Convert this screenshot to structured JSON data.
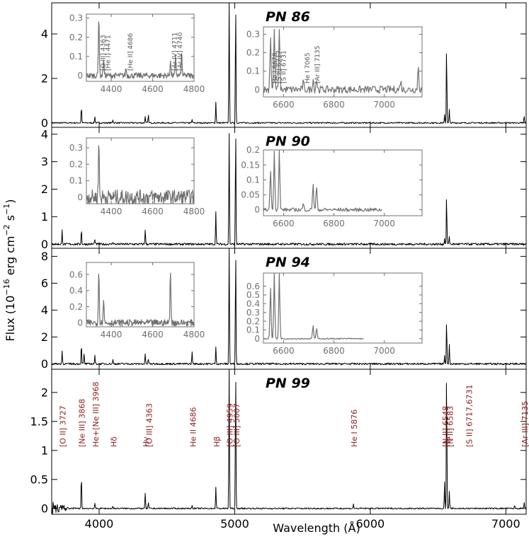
{
  "figure": {
    "xlabel": "Wavelength (Å)",
    "ylabel_main": "Flux (10",
    "ylabel_exp1": "−16",
    "ylabel_mid": " erg cm",
    "ylabel_exp2": "−2",
    "ylabel_mid2": " s",
    "ylabel_exp3": "−1",
    "ylabel_end": ")"
  },
  "chart_data": [
    {
      "type": "line",
      "title": "PN 86",
      "xlim": [
        3650,
        7150
      ],
      "ylim": [
        -0.2,
        5.4
      ],
      "yticks": [
        0,
        2,
        4
      ],
      "xticks": [
        4000,
        5000,
        6000,
        7000
      ],
      "baseline_noise": 0.03,
      "lines": [
        {
          "x": 3869,
          "y": 0.75
        },
        {
          "x": 3968,
          "y": 0.3
        },
        {
          "x": 4101,
          "y": 0.15
        },
        {
          "x": 4340,
          "y": 0.3
        },
        {
          "x": 4363,
          "y": 0.35
        },
        {
          "x": 4686,
          "y": 0.15
        },
        {
          "x": 4861,
          "y": 0.95
        },
        {
          "x": 4959,
          "y": 5.4
        },
        {
          "x": 5007,
          "y": 5.4
        },
        {
          "x": 6548,
          "y": 0.35
        },
        {
          "x": 6563,
          "y": 3.45
        },
        {
          "x": 6583,
          "y": 0.6
        },
        {
          "x": 7135,
          "y": 0.3
        }
      ],
      "insets": [
        {
          "xlim": [
            4280,
            4800
          ],
          "ylim": [
            -0.03,
            0.32
          ],
          "xticks": [
            4400,
            4600,
            4800
          ],
          "yticks": [
            0,
            0.1,
            0.2,
            0.3
          ],
          "ytick_labels": [
            "0",
            "0.1",
            "0.2",
            "0.3"
          ],
          "noise": 0.015,
          "lines": [
            {
              "x": 4340,
              "y": 0.32
            },
            {
              "x": 4363,
              "y": 0.09
            },
            {
              "x": 4471,
              "y": 0.04
            },
            {
              "x": 4686,
              "y": 0.08
            },
            {
              "x": 4711,
              "y": 0.1
            },
            {
              "x": 4740,
              "y": 0.12
            }
          ],
          "labels": [
            "[O III] 4363",
            "[He I] 4471",
            "[He II] 4686",
            "[Ar IV] 4711",
            "[Ar IV] 4740"
          ]
        },
        {
          "xlim": [
            6520,
            7150
          ],
          "ylim": [
            -0.04,
            0.34
          ],
          "xticks": [
            6600,
            6800,
            7000
          ],
          "yticks": [
            0,
            0.1,
            0.2,
            0.3
          ],
          "ytick_labels": [
            "0",
            "0.1",
            "0.2",
            "0.3"
          ],
          "noise": 0.02,
          "lines": [
            {
              "x": 6548,
              "y": 0.3
            },
            {
              "x": 6563,
              "y": 0.34
            },
            {
              "x": 6583,
              "y": 0.34
            },
            {
              "x": 6678,
              "y": 0.04
            },
            {
              "x": 6717,
              "y": 0.06
            },
            {
              "x": 6731,
              "y": 0.06
            },
            {
              "x": 7065,
              "y": 0.05
            },
            {
              "x": 7135,
              "y": 0.13
            }
          ],
          "labels": [
            "He I 6678",
            "[S II] 6717",
            "[S II] 6731",
            "He I 7065",
            "[Ar III] 7135"
          ]
        }
      ]
    },
    {
      "type": "line",
      "title": "PN 90",
      "xlim": [
        3650,
        7150
      ],
      "ylim": [
        -0.15,
        4.25
      ],
      "yticks": [
        0,
        1,
        2,
        3,
        4
      ],
      "xticks": [
        4000,
        5000,
        6000,
        7000
      ],
      "baseline_noise": 0.04,
      "lines": [
        {
          "x": 3727,
          "y": 0.5
        },
        {
          "x": 3869,
          "y": 0.55
        },
        {
          "x": 3968,
          "y": 0.2
        },
        {
          "x": 4101,
          "y": 0.1
        },
        {
          "x": 4340,
          "y": 0.55
        },
        {
          "x": 4861,
          "y": 1.2
        },
        {
          "x": 4959,
          "y": 4.0
        },
        {
          "x": 5007,
          "y": 4.25
        },
        {
          "x": 6548,
          "y": 0.2
        },
        {
          "x": 6563,
          "y": 1.75
        },
        {
          "x": 6583,
          "y": 0.3
        }
      ],
      "insets": [
        {
          "xlim": [
            4280,
            4800
          ],
          "ylim": [
            -0.04,
            0.36
          ],
          "xticks": [
            4400,
            4600,
            4800
          ],
          "yticks": [
            0,
            0.1,
            0.2,
            0.3
          ],
          "ytick_labels": [
            "0",
            "0.1",
            "0.2",
            "0.3"
          ],
          "noise": 0.045,
          "lines": [
            {
              "x": 4340,
              "y": 0.34
            }
          ],
          "labels": []
        },
        {
          "xlim": [
            6520,
            7150
          ],
          "ylim": [
            -0.02,
            0.2
          ],
          "xticks": [
            6600,
            6800,
            7000
          ],
          "yticks": [
            0,
            0.05,
            0.1,
            0.15,
            0.2
          ],
          "ytick_labels": [
            "0",
            "0.05",
            "0.1",
            "0.15",
            "0.2"
          ],
          "noise": 0.006,
          "data_end": 6990,
          "lines": [
            {
              "x": 6548,
              "y": 0.14
            },
            {
              "x": 6563,
              "y": 0.2
            },
            {
              "x": 6583,
              "y": 0.2
            },
            {
              "x": 6678,
              "y": 0.02
            },
            {
              "x": 6717,
              "y": 0.09
            },
            {
              "x": 6731,
              "y": 0.08
            }
          ],
          "labels": []
        }
      ]
    },
    {
      "type": "line",
      "title": "PN 94",
      "xlim": [
        3650,
        7150
      ],
      "ylim": [
        -0.4,
        8.6
      ],
      "yticks": [
        0,
        2,
        4,
        6,
        8
      ],
      "xticks": [
        4000,
        5000,
        6000,
        7000
      ],
      "baseline_noise": 0.07,
      "lines": [
        {
          "x": 3727,
          "y": 1.0
        },
        {
          "x": 3869,
          "y": 1.5
        },
        {
          "x": 3889,
          "y": 0.8
        },
        {
          "x": 3968,
          "y": 0.6
        },
        {
          "x": 4101,
          "y": 0.3
        },
        {
          "x": 4340,
          "y": 0.7
        },
        {
          "x": 4363,
          "y": 0.4
        },
        {
          "x": 4686,
          "y": 0.9
        },
        {
          "x": 4861,
          "y": 1.2
        },
        {
          "x": 4959,
          "y": 8.6
        },
        {
          "x": 5007,
          "y": 8.6
        },
        {
          "x": 6548,
          "y": 0.6
        },
        {
          "x": 6563,
          "y": 3.3
        },
        {
          "x": 6583,
          "y": 1.5
        }
      ],
      "insets": [
        {
          "xlim": [
            4280,
            4800
          ],
          "ylim": [
            -0.05,
            0.75
          ],
          "xticks": [
            4400,
            4600,
            4800
          ],
          "yticks": [
            0,
            0.2,
            0.4,
            0.6
          ],
          "ytick_labels": [
            "0",
            "0.2",
            "0.4",
            "0.6"
          ],
          "noise": 0.04,
          "lines": [
            {
              "x": 4340,
              "y": 0.65
            },
            {
              "x": 4363,
              "y": 0.3
            },
            {
              "x": 4686,
              "y": 0.67
            }
          ],
          "labels": []
        },
        {
          "xlim": [
            6520,
            7150
          ],
          "ylim": [
            -0.05,
            0.75
          ],
          "xticks": [
            6600,
            6800,
            7000
          ],
          "yticks": [
            0,
            0.1,
            0.2,
            0.3,
            0.4,
            0.5,
            0.6
          ],
          "ytick_labels": [
            "0",
            "0.1",
            "0.2",
            "0.3",
            "0.4",
            "0.5",
            "0.6"
          ],
          "noise": 0.006,
          "data_end": 6920,
          "lines": [
            {
              "x": 6548,
              "y": 0.6
            },
            {
              "x": 6563,
              "y": 0.75
            },
            {
              "x": 6583,
              "y": 0.75
            },
            {
              "x": 6717,
              "y": 0.15
            },
            {
              "x": 6731,
              "y": 0.12
            }
          ],
          "labels": []
        }
      ]
    },
    {
      "type": "line",
      "title": "PN 99",
      "xlim": [
        3650,
        7150
      ],
      "ylim": [
        -0.1,
        2.4
      ],
      "yticks": [
        0,
        0.5,
        1,
        1.5,
        2
      ],
      "ytick_labels": [
        "0",
        "0.5",
        "1",
        "1.5",
        "2"
      ],
      "xticks": [
        4000,
        5000,
        6000,
        7000
      ],
      "baseline_noise": 0.012,
      "low_noise": 0.12,
      "lines": [
        {
          "x": 3869,
          "y": 0.58
        },
        {
          "x": 3968,
          "y": 0.08
        },
        {
          "x": 4101,
          "y": 0.04
        },
        {
          "x": 4340,
          "y": 0.27
        },
        {
          "x": 4363,
          "y": 0.1
        },
        {
          "x": 4686,
          "y": 0.06
        },
        {
          "x": 4861,
          "y": 0.37
        },
        {
          "x": 4959,
          "y": 2.4
        },
        {
          "x": 5007,
          "y": 2.4
        },
        {
          "x": 5876,
          "y": 0.07
        },
        {
          "x": 6548,
          "y": 0.45
        },
        {
          "x": 6563,
          "y": 2.4
        },
        {
          "x": 6583,
          "y": 0.3
        },
        {
          "x": 7065,
          "y": 0.05
        },
        {
          "x": 7135,
          "y": 0.1
        }
      ],
      "annotations": [
        {
          "text": "[O II] 3727",
          "x": 3727
        },
        {
          "text": "[Ne III] 3868",
          "x": 3868
        },
        {
          "text": "He+[Ne III] 3968",
          "x": 3968
        },
        {
          "text": "Hδ",
          "x": 4101
        },
        {
          "text": "Hγ",
          "x": 4340
        },
        {
          "text": "[O III] 4363",
          "x": 4363
        },
        {
          "text": "He II 4686",
          "x": 4686
        },
        {
          "text": "Hβ",
          "x": 4861
        },
        {
          "text": "[O III] 4959",
          "x": 4959
        },
        {
          "text": "[O III] 5007",
          "x": 5007
        },
        {
          "text": "He I 5876",
          "x": 5876
        },
        {
          "text": "[N II] 6548",
          "x": 6548
        },
        {
          "text": "Hα",
          "x": 6563
        },
        {
          "text": "[N II] 6583",
          "x": 6583
        },
        {
          "text": "[S II] 6717,6731",
          "x": 6724
        },
        {
          "text": "[Ar III] 7135",
          "x": 7135
        }
      ],
      "annotation_color": "#8b1a1a"
    }
  ]
}
